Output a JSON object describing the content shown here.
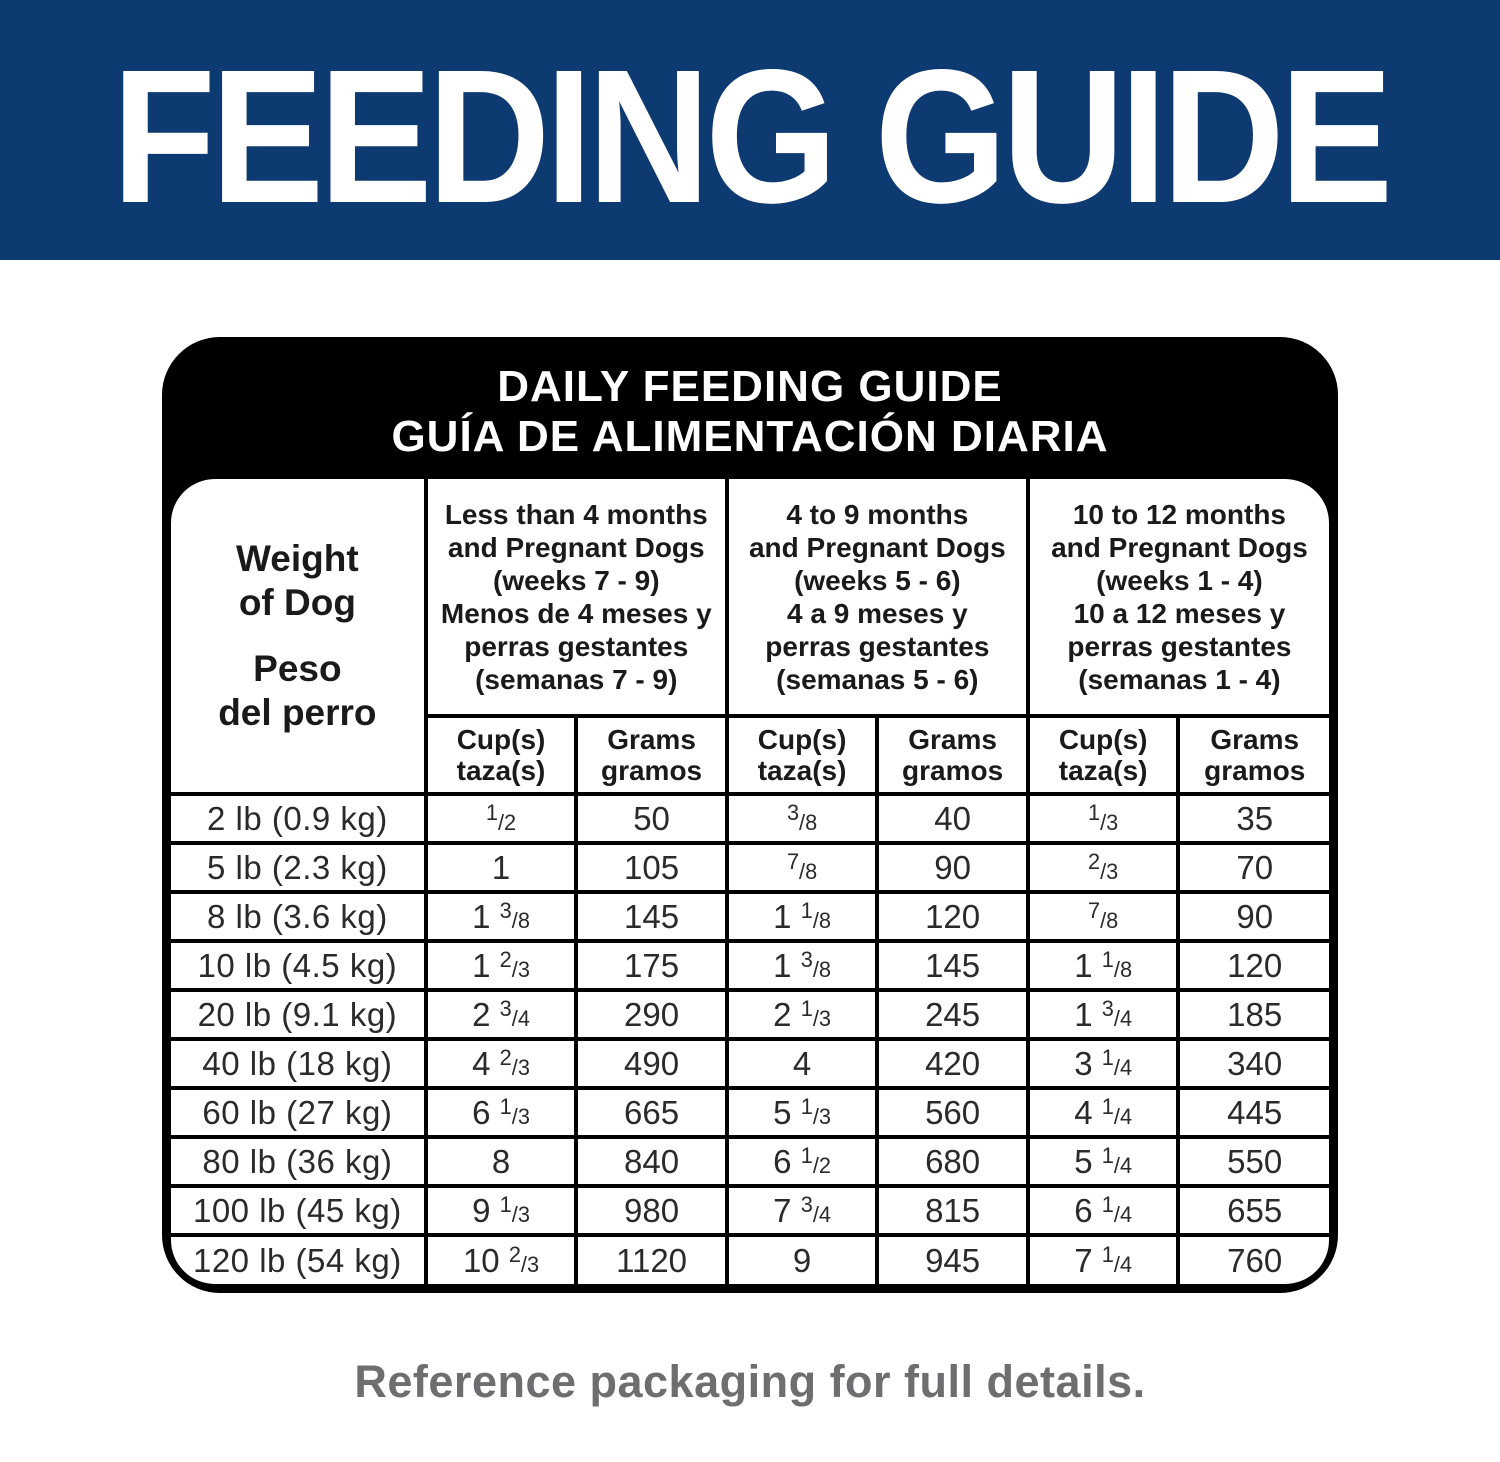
{
  "banner": {
    "title": "FEEDING GUIDE"
  },
  "card": {
    "title_line1": "DAILY FEEDING GUIDE",
    "title_line2": "GUÍA DE ALIMENTACIÓN DIARIA"
  },
  "table": {
    "weight_header": {
      "en_line1": "Weight",
      "en_line2": "of Dog",
      "es_line1": "Peso",
      "es_line2": "del perro"
    },
    "groups": [
      {
        "en": [
          "Less than 4 months",
          "and Pregnant Dogs",
          "(weeks 7 - 9)"
        ],
        "es": [
          "Menos de 4 meses y",
          "perras gestantes",
          "(semanas 7 - 9)"
        ]
      },
      {
        "en": [
          "4 to 9 months",
          "and Pregnant Dogs",
          "(weeks 5 - 6)"
        ],
        "es": [
          "4 a 9 meses y",
          "perras gestantes",
          "(semanas 5 - 6)"
        ]
      },
      {
        "en": [
          "10 to 12 months",
          "and Pregnant Dogs",
          "(weeks 1 - 4)"
        ],
        "es": [
          "10 a 12 meses y",
          "perras gestantes",
          "(semanas 1 - 4)"
        ]
      }
    ],
    "subheaders": {
      "cups": [
        "Cup(s)",
        "taza(s)"
      ],
      "grams": [
        "Grams",
        "gramos"
      ]
    },
    "rows": [
      {
        "weight": "2 lb (0.9 kg)",
        "values": [
          "1/2",
          "50",
          "3/8",
          "40",
          "1/3",
          "35"
        ]
      },
      {
        "weight": "5 lb (2.3 kg)",
        "values": [
          "1",
          "105",
          "7/8",
          "90",
          "2/3",
          "70"
        ]
      },
      {
        "weight": "8 lb (3.6 kg)",
        "values": [
          "1 3/8",
          "145",
          "1 1/8",
          "120",
          "7/8",
          "90"
        ]
      },
      {
        "weight": "10 lb (4.5 kg)",
        "values": [
          "1 2/3",
          "175",
          "1 3/8",
          "145",
          "1 1/8",
          "120"
        ]
      },
      {
        "weight": "20 lb (9.1 kg)",
        "values": [
          "2 3/4",
          "290",
          "2 1/3",
          "245",
          "1 3/4",
          "185"
        ]
      },
      {
        "weight": "40 lb (18 kg)",
        "values": [
          "4 2/3",
          "490",
          "4",
          "420",
          "3 1/4",
          "340"
        ]
      },
      {
        "weight": "60 lb (27 kg)",
        "values": [
          "6 1/3",
          "665",
          "5 1/3",
          "560",
          "4 1/4",
          "445"
        ]
      },
      {
        "weight": "80 lb (36 kg)",
        "values": [
          "8",
          "840",
          "6 1/2",
          "680",
          "5 1/4",
          "550"
        ]
      },
      {
        "weight": "100 lb (45 kg)",
        "values": [
          "9 1/3",
          "980",
          "7 3/4",
          "815",
          "6 1/4",
          "655"
        ]
      },
      {
        "weight": "120 lb (54 kg)",
        "values": [
          "10 2/3",
          "1120",
          "9",
          "945",
          "7 1/4",
          "760"
        ]
      }
    ]
  },
  "footer": {
    "caption": "Reference packaging for full details."
  },
  "colors": {
    "banner_blue": "#0d3a70",
    "card_black": "#000000",
    "caption_gray": "#6e6e70"
  }
}
